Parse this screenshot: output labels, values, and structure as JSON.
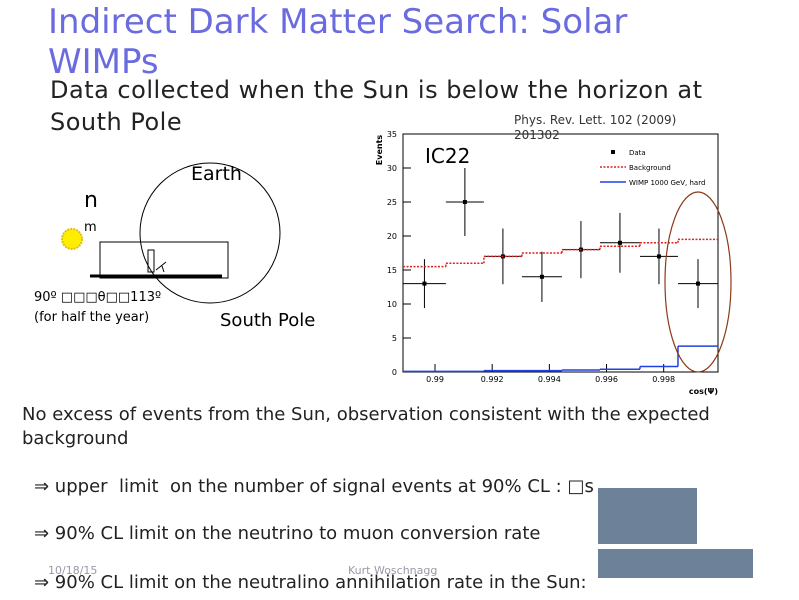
{
  "title": "Indirect Dark Matter Search: Solar WIMPs",
  "subtitle": "Data collected when the Sun is below the horizon at South Pole",
  "citation": "Phys. Rev. Lett. 102 (2009) 201302",
  "diagram": {
    "earth": "Earth",
    "nu": "n",
    "mu": "m",
    "angle": "90º □□□θ□□113º",
    "period": "(for half the year)",
    "location": "South Pole"
  },
  "chart_data": {
    "type": "histogram",
    "title": "IC22",
    "bins": [
      0.98888,
      0.99038,
      0.99171,
      0.99304,
      0.99444,
      0.99577,
      0.99717,
      0.9985,
      0.9999
    ],
    "series": [
      {
        "name": "Data",
        "color": "#000000",
        "values": [
          13,
          25,
          17,
          14,
          18,
          19,
          17,
          13
        ],
        "errors": [
          3.6,
          5,
          4.1,
          3.7,
          4.2,
          4.4,
          4.1,
          3.6
        ]
      },
      {
        "name": "Background",
        "color": "#e02020",
        "values": [
          15.5,
          16,
          17,
          17.5,
          18,
          18.5,
          19,
          19.5
        ]
      },
      {
        "name": "WIMP 1000 GeV, hard",
        "color": "#2040e0",
        "values": [
          0.1,
          0.1,
          0.2,
          0.2,
          0.3,
          0.4,
          0.8,
          3.8
        ]
      }
    ],
    "xlabel": "cos(Ψ)",
    "ylabel": "Events",
    "xlim": [
      0.98888,
      0.9999
    ],
    "ylim": [
      0,
      35
    ],
    "xticks": [
      0.99,
      0.992,
      0.994,
      0.996,
      0.998
    ],
    "yticks": [
      0,
      5,
      10,
      15,
      20,
      25,
      30,
      35
    ]
  },
  "body": {
    "statement": "No excess of events from the Sun, observation consistent with the expected background",
    "bullets": [
      "⇒ upper  limit  on the number of signal events at 90% CL : □s",
      "⇒ 90% CL limit on the neutrino to muon conversion rate",
      "⇒ 90% CL limit on the neutralino annihilation rate in the Sun:"
    ]
  },
  "footer": {
    "date": "10/18/15",
    "author": "Kurt Woschnagg"
  }
}
